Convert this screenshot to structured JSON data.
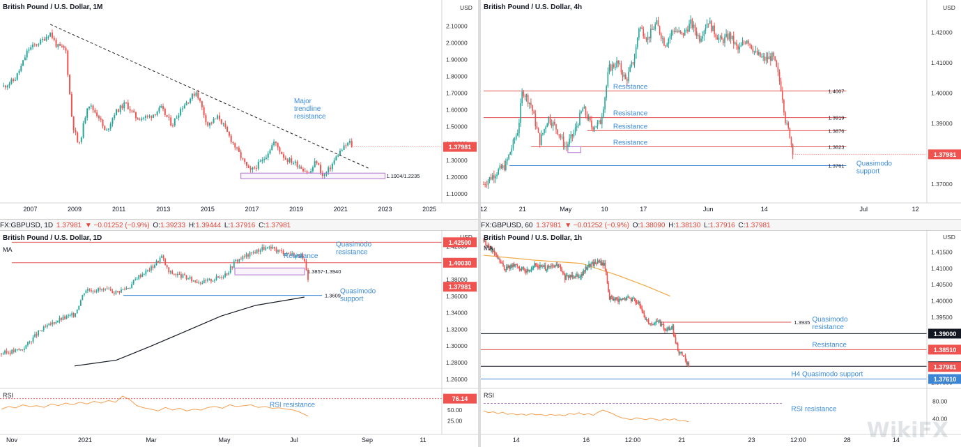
{
  "colors": {
    "up": "#26a69a",
    "down": "#ef5350",
    "resistance": "#e05353",
    "support": "#3d86d6",
    "annot": "#3b8bdc",
    "rsi": "#f5a153",
    "ma": "#f0a946",
    "purple": "#b070d0",
    "black": "#131722",
    "grid": "#f0f0f0"
  },
  "header_strips": [
    {
      "symbol": "FX:GBPUSD, 1D",
      "price": "1.37981",
      "change": "▼ −0.01252 (−0.9%)",
      "o_label": "O:",
      "o": "1.39233",
      "h_label": "H:",
      "h": "1.39444",
      "l_label": "L:",
      "l": "1.37916",
      "c_label": "C:",
      "c": "1.37981"
    },
    {
      "symbol": "FX:GBPUSD, 60",
      "price": "1.37981",
      "change": "▼ −0.01252 (−0.9%)",
      "o_label": "O:",
      "o": "1.38090",
      "h_label": "H:",
      "h": "1.38130",
      "l_label": "L:",
      "l": "1.37916",
      "c_label": "C:",
      "c": "1.37981"
    }
  ],
  "watermark": "WikiFX",
  "chart_data": [
    {
      "type": "candlestick",
      "title": "British Pound / U.S. Dollar, 1M",
      "currency": "USD",
      "y_ticks": [
        "2.10000",
        "2.00000",
        "1.90000",
        "1.80000",
        "1.70000",
        "1.60000",
        "1.50000",
        "1.40000",
        "1.30000",
        "1.20000",
        "1.10000"
      ],
      "y_min": 1.05,
      "y_max": 2.18,
      "x_ticks": [
        "2007",
        "2009",
        "2011",
        "2013",
        "2015",
        "2017",
        "2019",
        "2021",
        "2023",
        "2025"
      ],
      "x_tick_years": [
        2007,
        2009,
        2011,
        2013,
        2015,
        2017,
        2019,
        2021,
        2023,
        2025
      ],
      "x_min": 2005.7,
      "x_max": 2025.5,
      "series_path": [
        [
          2005.8,
          1.74
        ],
        [
          2006.3,
          1.78
        ],
        [
          2006.6,
          1.86
        ],
        [
          2006.9,
          1.96
        ],
        [
          2007.5,
          2.01
        ],
        [
          2007.9,
          2.06
        ],
        [
          2008.2,
          1.98
        ],
        [
          2008.6,
          1.96
        ],
        [
          2008.9,
          1.52
        ],
        [
          2009.2,
          1.38
        ],
        [
          2009.6,
          1.64
        ],
        [
          2010.1,
          1.56
        ],
        [
          2010.4,
          1.46
        ],
        [
          2010.8,
          1.58
        ],
        [
          2011.3,
          1.64
        ],
        [
          2011.8,
          1.55
        ],
        [
          2012.4,
          1.56
        ],
        [
          2012.9,
          1.61
        ],
        [
          2013.4,
          1.51
        ],
        [
          2013.8,
          1.61
        ],
        [
          2014.5,
          1.71
        ],
        [
          2015.0,
          1.51
        ],
        [
          2015.5,
          1.56
        ],
        [
          2015.9,
          1.46
        ],
        [
          2016.5,
          1.32
        ],
        [
          2016.9,
          1.23
        ],
        [
          2017.5,
          1.3
        ],
        [
          2018.0,
          1.41
        ],
        [
          2018.5,
          1.31
        ],
        [
          2019.0,
          1.28
        ],
        [
          2019.6,
          1.22
        ],
        [
          2019.9,
          1.3
        ],
        [
          2020.2,
          1.2
        ],
        [
          2020.5,
          1.25
        ],
        [
          2020.9,
          1.34
        ],
        [
          2021.1,
          1.37
        ],
        [
          2021.4,
          1.41
        ],
        [
          2021.5,
          1.38
        ]
      ],
      "trendline": {
        "from": [
          2007.9,
          2.11
        ],
        "to": [
          2022.3,
          1.25
        ]
      },
      "zone": {
        "x0": 2016.5,
        "x1": 2023.0,
        "y0": 1.1904,
        "y1": 1.2235,
        "label": "1.1904/1.2235"
      },
      "last_price": "1.37981",
      "last_value": 1.37981,
      "annotations": [
        {
          "text": [
            "Major",
            "trendline",
            "resistance"
          ],
          "x": 2018.9,
          "y": 1.64
        }
      ]
    },
    {
      "type": "candlestick",
      "title": "British Pound / U.S. Dollar, 4h",
      "currency": "USD",
      "y_ticks": [
        "1.42000",
        "1.41000",
        "1.40000",
        "1.39000",
        "1.38000",
        "1.37000"
      ],
      "y_min": 1.3645,
      "y_max": 1.4265,
      "x_ticks": [
        "12",
        "21",
        "May",
        "10",
        "17",
        "Jun",
        "14",
        "Jul",
        "12"
      ],
      "x_tick_pos": [
        0,
        9,
        19,
        28,
        37,
        52,
        65,
        88,
        100
      ],
      "x_min": 0,
      "x_max": 102,
      "series_path": [
        [
          0,
          1.37
        ],
        [
          3,
          1.374
        ],
        [
          5,
          1.376
        ],
        [
          8,
          1.388
        ],
        [
          9,
          1.401
        ],
        [
          11,
          1.396
        ],
        [
          13,
          1.384
        ],
        [
          15,
          1.392
        ],
        [
          17,
          1.388
        ],
        [
          19,
          1.382
        ],
        [
          21,
          1.387
        ],
        [
          23,
          1.395
        ],
        [
          25,
          1.389
        ],
        [
          27,
          1.39
        ],
        [
          28,
          1.398
        ],
        [
          29,
          1.408
        ],
        [
          31,
          1.41
        ],
        [
          33,
          1.404
        ],
        [
          35,
          1.412
        ],
        [
          36,
          1.422
        ],
        [
          38,
          1.418
        ],
        [
          40,
          1.423
        ],
        [
          42,
          1.416
        ],
        [
          44,
          1.421
        ],
        [
          46,
          1.419
        ],
        [
          48,
          1.423
        ],
        [
          50,
          1.418
        ],
        [
          52,
          1.424
        ],
        [
          53,
          1.421
        ],
        [
          55,
          1.417
        ],
        [
          57,
          1.419
        ],
        [
          59,
          1.414
        ],
        [
          61,
          1.418
        ],
        [
          63,
          1.413
        ],
        [
          65,
          1.411
        ],
        [
          67,
          1.412
        ],
        [
          68,
          1.407
        ],
        [
          69,
          1.401
        ],
        [
          70,
          1.39
        ],
        [
          71,
          1.386
        ],
        [
          71.6,
          1.3798
        ]
      ],
      "levels": [
        {
          "value": 1.4007,
          "label": "1.4007",
          "text": "Resistance",
          "color": "resistance",
          "x_from": 0
        },
        {
          "value": 1.3919,
          "label": "1.3919",
          "text": "Resistance",
          "color": "resistance",
          "x_from": 0
        },
        {
          "value": 1.3876,
          "label": "1.3876",
          "text": "Resistance",
          "color": "resistance",
          "x_from": 24
        },
        {
          "value": 1.3823,
          "label": "1.3823",
          "text": "Resistance",
          "color": "resistance",
          "x_from": 11
        },
        {
          "value": 1.3761,
          "label": "1.3761",
          "text": "Quasimodo support",
          "color": "support",
          "x_from": 6
        }
      ],
      "zone": {
        "x0": 19.5,
        "x1": 22.5,
        "y0": 1.3804,
        "y1": 1.3823
      },
      "last_price": "1.37981",
      "last_value": 1.37981
    },
    {
      "type": "candlestick",
      "title": "British Pound / U.S. Dollar, 1D",
      "currency": "USD",
      "ma_label": "MA",
      "rsi_label": "RSI",
      "y_ticks": [
        "1.42000",
        "1.40000",
        "1.38000",
        "1.36000",
        "1.34000",
        "1.32000",
        "1.30000",
        "1.28000",
        "1.26000"
      ],
      "y_min": 1.254,
      "y_max": 1.432,
      "x_ticks": [
        "Nov",
        "2021",
        "Mar",
        "May",
        "Jul",
        "Sep",
        "11"
      ],
      "x_tick_pos": [
        0,
        2.1,
        4.0,
        6.1,
        8.1,
        10.2,
        11.8
      ],
      "x_min": -0.3,
      "x_max": 12.3,
      "series_path": [
        [
          -0.3,
          1.291
        ],
        [
          0.3,
          1.296
        ],
        [
          0.8,
          1.318
        ],
        [
          1.3,
          1.331
        ],
        [
          1.8,
          1.338
        ],
        [
          2.1,
          1.368
        ],
        [
          2.5,
          1.368
        ],
        [
          3.0,
          1.365
        ],
        [
          3.4,
          1.372
        ],
        [
          3.6,
          1.383
        ],
        [
          4.0,
          1.394
        ],
        [
          4.3,
          1.408
        ],
        [
          4.5,
          1.389
        ],
        [
          4.9,
          1.384
        ],
        [
          5.2,
          1.379
        ],
        [
          5.5,
          1.377
        ],
        [
          5.9,
          1.382
        ],
        [
          6.2,
          1.389
        ],
        [
          6.4,
          1.402
        ],
        [
          6.8,
          1.41
        ],
        [
          7.2,
          1.418
        ],
        [
          7.5,
          1.417
        ],
        [
          7.7,
          1.414
        ],
        [
          8.0,
          1.411
        ],
        [
          8.3,
          1.408
        ],
        [
          8.4,
          1.4
        ],
        [
          8.5,
          1.3798
        ]
      ],
      "ma_path": [
        [
          1.8,
          1.276
        ],
        [
          3.0,
          1.283
        ],
        [
          4.0,
          1.3
        ],
        [
          5.0,
          1.318
        ],
        [
          6.0,
          1.336
        ],
        [
          7.0,
          1.349
        ],
        [
          8.0,
          1.356
        ],
        [
          8.4,
          1.359
        ]
      ],
      "levels": [
        {
          "value": 1.425,
          "label": "1.42500",
          "text": "Quasimodo resistance",
          "color": "resistance",
          "badge": true
        },
        {
          "value": 1.4003,
          "label": "1.40030",
          "text": "Resistance",
          "color": "resistance",
          "badge": true
        },
        {
          "value": 1.3609,
          "label": "1.3609",
          "text": "Quasimodo support",
          "color": "support",
          "x_from": 3.2
        }
      ],
      "zone": {
        "x0": 6.4,
        "x1": 8.4,
        "y0": 1.3857,
        "y1": 1.394,
        "label": "1.3857-1.3940"
      },
      "last_price": "1.37981",
      "last_value": 1.37981,
      "rsi": {
        "ticks": [
          "50.00",
          "25.00"
        ],
        "tick_values": [
          50,
          25
        ],
        "min": 10,
        "max": 90,
        "level": 76.14,
        "level_label": "76.14",
        "level_text": "RSI resistance",
        "values": [
          52,
          58,
          55,
          62,
          58,
          60,
          56,
          64,
          60,
          66,
          62,
          68,
          64,
          70,
          66,
          72,
          68,
          82,
          74,
          60,
          55,
          52,
          48,
          56,
          50,
          54,
          48,
          52,
          50,
          56,
          58,
          54,
          62,
          58,
          60,
          62,
          56,
          58,
          54,
          55,
          52,
          50,
          44,
          36
        ]
      }
    },
    {
      "type": "candlestick",
      "title": "British Pound / U.S. Dollar, 1h",
      "currency": "USD",
      "ma_label": "MA",
      "rsi_label": "RSI",
      "y_ticks": [
        "1.41500",
        "1.41000",
        "1.40500",
        "1.40000",
        "1.39500",
        "1.38500",
        "1.37500"
      ],
      "y_min": 1.3745,
      "y_max": 1.4185,
      "x_ticks": [
        "14",
        "16",
        "12:00",
        "21",
        "23",
        "12:00",
        "28",
        "14"
      ],
      "x_tick_pos": [
        1.2,
        4.2,
        6.2,
        8.3,
        11.3,
        13.3,
        15.4,
        17.5
      ],
      "x_min": -0.2,
      "x_max": 18.7,
      "series_path": [
        [
          -0.2,
          1.4185
        ],
        [
          0.3,
          1.414
        ],
        [
          0.7,
          1.41
        ],
        [
          1.2,
          1.411
        ],
        [
          1.6,
          1.409
        ],
        [
          2.0,
          1.411
        ],
        [
          2.5,
          1.41
        ],
        [
          3.0,
          1.411
        ],
        [
          3.3,
          1.407
        ],
        [
          3.6,
          1.408
        ],
        [
          4.0,
          1.408
        ],
        [
          4.3,
          1.411
        ],
        [
          4.7,
          1.412
        ],
        [
          5.0,
          1.411
        ],
        [
          5.2,
          1.401
        ],
        [
          5.6,
          1.4
        ],
        [
          6.0,
          1.401
        ],
        [
          6.4,
          1.4
        ],
        [
          6.7,
          1.395
        ],
        [
          7.0,
          1.393
        ],
        [
          7.3,
          1.394
        ],
        [
          7.6,
          1.391
        ],
        [
          7.9,
          1.392
        ],
        [
          8.0,
          1.388
        ],
        [
          8.2,
          1.384
        ],
        [
          8.4,
          1.383
        ],
        [
          8.6,
          1.3798
        ]
      ],
      "ma_path": [
        [
          -0.2,
          1.414
        ],
        [
          2.0,
          1.4125
        ],
        [
          4.0,
          1.4115
        ],
        [
          5.5,
          1.408
        ],
        [
          6.8,
          1.4045
        ],
        [
          7.8,
          1.4015
        ]
      ],
      "levels": [
        {
          "value": 1.3935,
          "label": "1.3935",
          "text": "Quasimodo resistance",
          "color": "resistance",
          "x_from": 7.4
        },
        {
          "value": 1.39,
          "label": "1.39000",
          "text": "",
          "color": "black",
          "badge": true,
          "badge_black": true
        },
        {
          "value": 1.3851,
          "label": "1.38510",
          "text": "Resistance",
          "color": "resistance",
          "badge": true
        },
        {
          "value": 1.38,
          "label": "1.38000",
          "text": "",
          "color": "black",
          "badge": true,
          "badge_black": true
        },
        {
          "value": 1.3761,
          "label": "1.37610",
          "text": "H4 Quasimodo support",
          "color": "support",
          "badge": true
        }
      ],
      "last_price": "1.37981",
      "last_value": 1.37981,
      "rsi": {
        "ticks": [
          "80.00",
          "40.00"
        ],
        "tick_values": [
          80,
          40
        ],
        "min": 20,
        "max": 100,
        "level": 75,
        "level_text": "RSI resistance",
        "values": [
          58,
          54,
          56,
          52,
          55,
          50,
          52,
          49,
          51,
          48,
          52,
          49,
          50,
          47,
          50,
          48,
          49,
          47,
          52,
          50,
          54,
          49,
          52,
          48,
          55,
          60,
          56,
          52,
          46,
          42,
          40,
          38,
          42,
          40,
          38,
          41,
          39,
          36,
          40,
          37,
          40,
          35,
          36,
          33
        ]
      }
    }
  ]
}
